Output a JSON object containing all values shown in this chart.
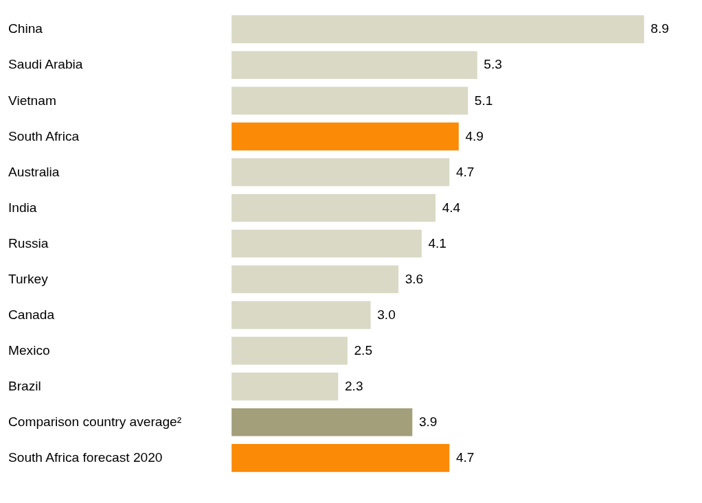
{
  "chart_data": {
    "type": "bar",
    "orientation": "horizontal",
    "tick_labels": "y",
    "categories": [
      "China",
      "Saudi Arabia",
      "Vietnam",
      "South Africa",
      "Australia",
      "India",
      "Russia",
      "Turkey",
      "Canada",
      "Mexico",
      "Brazil",
      "Comparison country average²",
      "South Africa forecast 2020"
    ],
    "values": [
      8.9,
      5.3,
      5.1,
      4.9,
      4.7,
      4.4,
      4.1,
      3.6,
      3.0,
      2.5,
      2.3,
      3.9,
      4.7
    ],
    "value_labels": [
      "8.9",
      "5.3",
      "5.1",
      "4.9",
      "4.7",
      "4.4",
      "4.1",
      "3.6",
      "3.0",
      "2.5",
      "2.3",
      "3.9",
      "4.7"
    ],
    "colors": [
      "#dad9c6",
      "#dad9c6",
      "#dad9c6",
      "#fb8a06",
      "#dad9c6",
      "#dad9c6",
      "#dad9c6",
      "#dad9c6",
      "#dad9c6",
      "#dad9c6",
      "#dad9c6",
      "#a39f7b",
      "#fb8a06"
    ]
  }
}
